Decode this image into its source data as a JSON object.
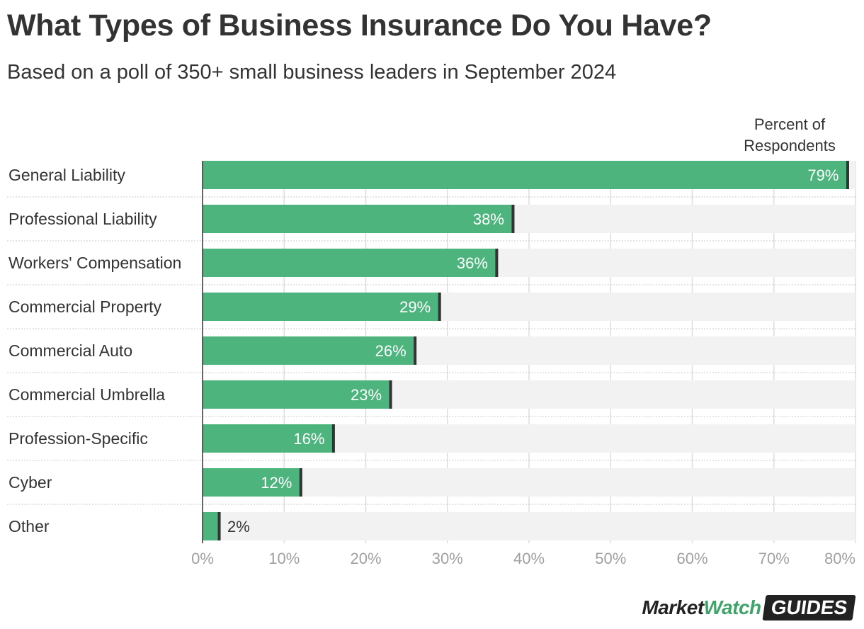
{
  "title": "What Types of Business Insurance Do You Have?",
  "subtitle": "Based on a poll of 350+ small business leaders in September 2024",
  "logo": {
    "part1": "Market",
    "part2": "Watch",
    "part3": "GUIDES"
  },
  "colors": {
    "bar": "#4cb47c",
    "track": "#f2f2f2",
    "marker": "#333333",
    "gridline": "#dddddd",
    "tick_text": "#a0a0a0",
    "text": "#333333"
  },
  "chart_data": {
    "type": "bar",
    "orientation": "horizontal",
    "value_header": "Percent of Respondents",
    "categories": [
      "General Liability",
      "Professional Liability",
      "Workers' Compensation",
      "Commercial Property",
      "Commercial Auto",
      "Commercial Umbrella",
      "Profession-Specific",
      "Cyber",
      "Other"
    ],
    "values": [
      79,
      38,
      36,
      29,
      26,
      23,
      16,
      12,
      2
    ],
    "data_labels": [
      "79%",
      "38%",
      "36%",
      "29%",
      "26%",
      "23%",
      "16%",
      "12%",
      "2%"
    ],
    "xlim": [
      0,
      80
    ],
    "xticks": [
      0,
      10,
      20,
      30,
      40,
      50,
      60,
      70,
      80
    ],
    "xtick_labels": [
      "0%",
      "10%",
      "20%",
      "30%",
      "40%",
      "50%",
      "60%",
      "70%",
      "80%"
    ],
    "grid": true
  }
}
